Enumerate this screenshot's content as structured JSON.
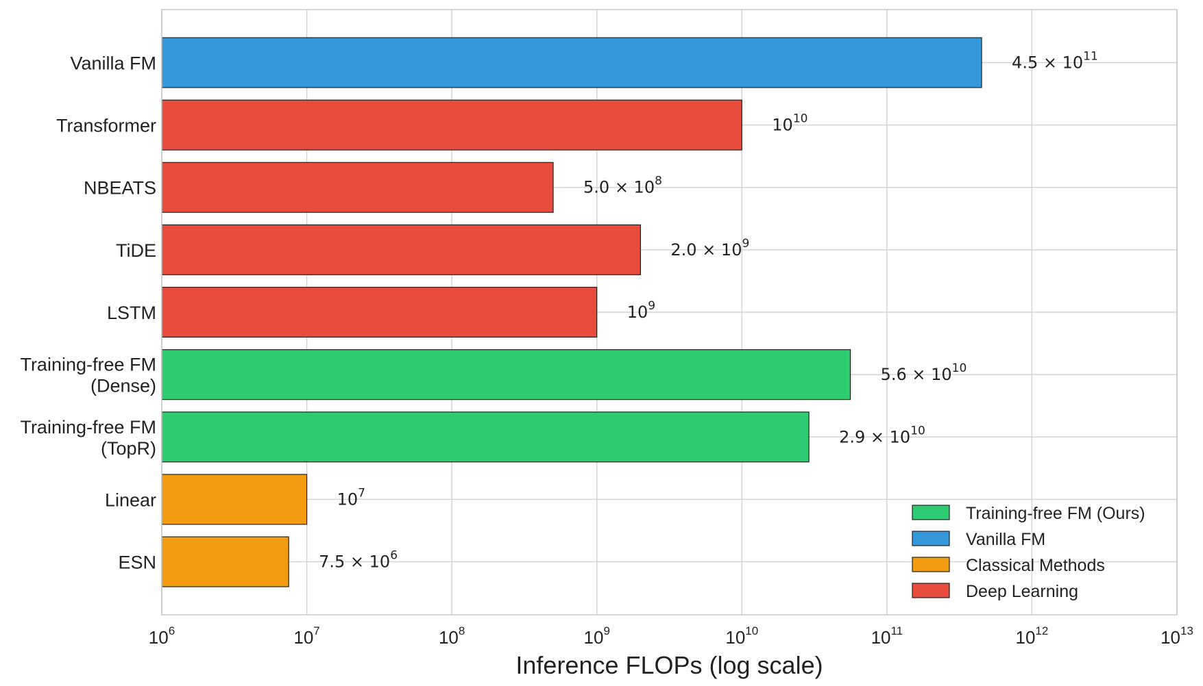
{
  "chart_data": {
    "type": "bar",
    "orientation": "horizontal",
    "xlabel": "Inference FLOPs (log scale)",
    "ylabel": "",
    "title": "",
    "xscale": "log",
    "xlim": [
      1000000,
      10000000000000
    ],
    "xticks": [
      {
        "value": 1000000,
        "base": "10",
        "exp": "6"
      },
      {
        "value": 10000000,
        "base": "10",
        "exp": "7"
      },
      {
        "value": 100000000,
        "base": "10",
        "exp": "8"
      },
      {
        "value": 1000000000,
        "base": "10",
        "exp": "9"
      },
      {
        "value": 10000000000,
        "base": "10",
        "exp": "10"
      },
      {
        "value": 100000000000,
        "base": "10",
        "exp": "11"
      },
      {
        "value": 1000000000000,
        "base": "10",
        "exp": "12"
      },
      {
        "value": 10000000000000,
        "base": "10",
        "exp": "13"
      }
    ],
    "grid": true,
    "legend_position": "bottom-right",
    "legend": [
      {
        "name": "Training-free FM (Ours)",
        "color": "#2ecc71"
      },
      {
        "name": "Vanilla FM",
        "color": "#3498db"
      },
      {
        "name": "Classical Methods",
        "color": "#f39c12"
      },
      {
        "name": "Deep Learning",
        "color": "#e74c3c"
      }
    ],
    "bars": [
      {
        "label": [
          "Vanilla FM"
        ],
        "value": 450000000000,
        "group": "Vanilla FM",
        "color": "#3498db",
        "annotation": {
          "mant": "4.5 × 10",
          "exp": "11"
        }
      },
      {
        "label": [
          "Transformer"
        ],
        "value": 10000000000,
        "group": "Deep Learning",
        "color": "#e74c3c",
        "annotation": {
          "mant": "10",
          "exp": "10"
        }
      },
      {
        "label": [
          "NBEATS"
        ],
        "value": 500000000,
        "group": "Deep Learning",
        "color": "#e74c3c",
        "annotation": {
          "mant": "5.0 × 10",
          "exp": "8"
        }
      },
      {
        "label": [
          "TiDE"
        ],
        "value": 2000000000,
        "group": "Deep Learning",
        "color": "#e74c3c",
        "annotation": {
          "mant": "2.0 × 10",
          "exp": "9"
        }
      },
      {
        "label": [
          "LSTM"
        ],
        "value": 1000000000,
        "group": "Deep Learning",
        "color": "#e74c3c",
        "annotation": {
          "mant": "10",
          "exp": "9"
        }
      },
      {
        "label": [
          "Training-free FM",
          "(Dense)"
        ],
        "value": 56000000000,
        "group": "Training-free FM (Ours)",
        "color": "#2ecc71",
        "annotation": {
          "mant": "5.6 × 10",
          "exp": "10"
        }
      },
      {
        "label": [
          "Training-free FM",
          "(TopR)"
        ],
        "value": 29000000000,
        "group": "Training-free FM (Ours)",
        "color": "#2ecc71",
        "annotation": {
          "mant": "2.9 × 10",
          "exp": "10"
        }
      },
      {
        "label": [
          "Linear"
        ],
        "value": 10000000,
        "group": "Classical Methods",
        "color": "#f39c12",
        "annotation": {
          "mant": "10",
          "exp": "7"
        }
      },
      {
        "label": [
          "ESN"
        ],
        "value": 7500000,
        "group": "Classical Methods",
        "color": "#f39c12",
        "annotation": {
          "mant": "7.5 × 10",
          "exp": "6"
        }
      }
    ]
  }
}
